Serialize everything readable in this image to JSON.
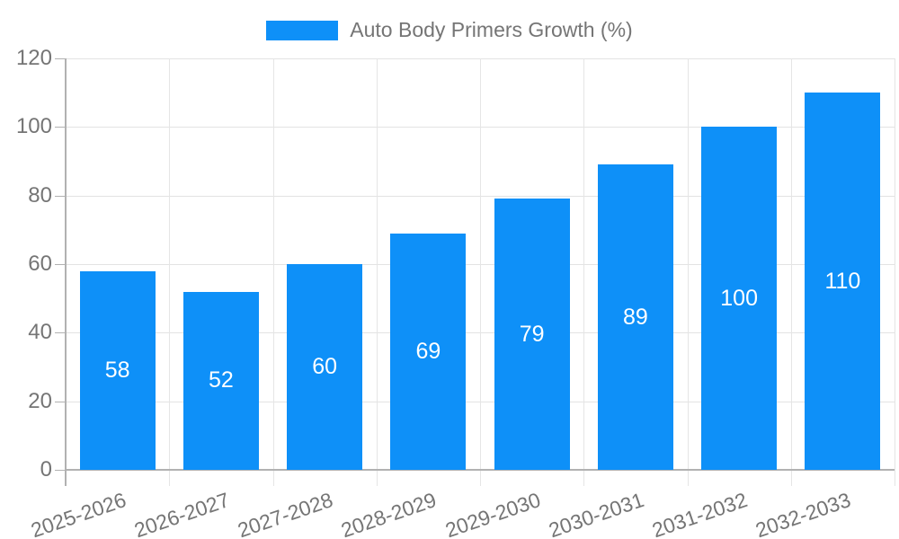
{
  "chart_data": {
    "type": "bar",
    "title": "Auto Body Primers Growth (%)",
    "legend_label": "Auto Body Primers Growth (%)",
    "legend_position": "top",
    "categories": [
      "2025-2026",
      "2026-2027",
      "2027-2028",
      "2028-2029",
      "2029-2030",
      "2030-2031",
      "2031-2032",
      "2032-2033"
    ],
    "values": [
      58,
      52,
      60,
      69,
      79,
      89,
      100,
      110
    ],
    "xlabel": "",
    "ylabel": "",
    "ylim": [
      0,
      120
    ],
    "yticks": [
      0,
      20,
      40,
      60,
      80,
      100,
      120
    ],
    "grid": true,
    "bar_color": "#0e90f8",
    "grid_color": "#e3e3e3",
    "axis_line_color": "#b1b1b1",
    "axis_text_color": "#757575",
    "value_label_color": "#ffffff"
  }
}
